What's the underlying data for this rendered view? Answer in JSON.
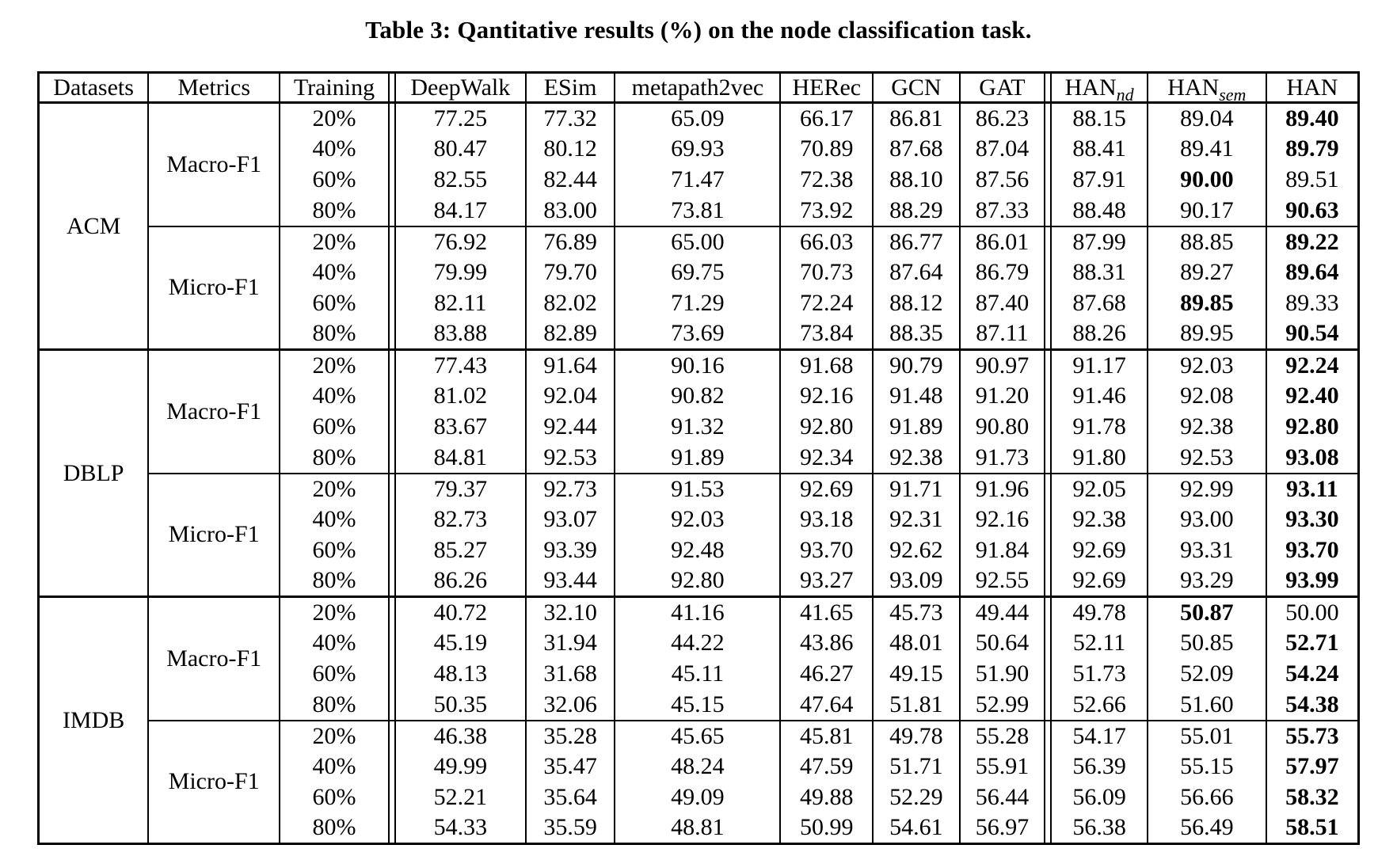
{
  "title": "Table 3: Qantitative results (%) on the node classification task.",
  "table": {
    "columns": [
      {
        "label": "Datasets"
      },
      {
        "label": "Metrics"
      },
      {
        "label": "Training"
      },
      {
        "label": "DeepWalk"
      },
      {
        "label": "ESim"
      },
      {
        "label": "metapath2vec"
      },
      {
        "label": "HERec"
      },
      {
        "label": "GCN"
      },
      {
        "label": "GAT"
      },
      {
        "label": "HAN",
        "sub": "nd"
      },
      {
        "label": "HAN",
        "sub": "sem"
      },
      {
        "label": "HAN"
      }
    ],
    "groups": [
      {
        "dataset": "ACM",
        "sections": [
          {
            "metric": "Macro-F1",
            "rows": [
              {
                "training": "20%",
                "values": [
                  "77.25",
                  "77.32",
                  "65.09",
                  "66.17",
                  "86.81",
                  "86.23",
                  "88.15",
                  "89.04",
                  "89.40"
                ],
                "bold": [
                  8
                ]
              },
              {
                "training": "40%",
                "values": [
                  "80.47",
                  "80.12",
                  "69.93",
                  "70.89",
                  "87.68",
                  "87.04",
                  "88.41",
                  "89.41",
                  "89.79"
                ],
                "bold": [
                  8
                ]
              },
              {
                "training": "60%",
                "values": [
                  "82.55",
                  "82.44",
                  "71.47",
                  "72.38",
                  "88.10",
                  "87.56",
                  "87.91",
                  "90.00",
                  "89.51"
                ],
                "bold": [
                  7
                ]
              },
              {
                "training": "80%",
                "values": [
                  "84.17",
                  "83.00",
                  "73.81",
                  "73.92",
                  "88.29",
                  "87.33",
                  "88.48",
                  "90.17",
                  "90.63"
                ],
                "bold": [
                  8
                ]
              }
            ]
          },
          {
            "metric": "Micro-F1",
            "rows": [
              {
                "training": "20%",
                "values": [
                  "76.92",
                  "76.89",
                  "65.00",
                  "66.03",
                  "86.77",
                  "86.01",
                  "87.99",
                  "88.85",
                  "89.22"
                ],
                "bold": [
                  8
                ]
              },
              {
                "training": "40%",
                "values": [
                  "79.99",
                  "79.70",
                  "69.75",
                  "70.73",
                  "87.64",
                  "86.79",
                  "88.31",
                  "89.27",
                  "89.64"
                ],
                "bold": [
                  8
                ]
              },
              {
                "training": "60%",
                "values": [
                  "82.11",
                  "82.02",
                  "71.29",
                  "72.24",
                  "88.12",
                  "87.40",
                  "87.68",
                  "89.85",
                  "89.33"
                ],
                "bold": [
                  7
                ]
              },
              {
                "training": "80%",
                "values": [
                  "83.88",
                  "82.89",
                  "73.69",
                  "73.84",
                  "88.35",
                  "87.11",
                  "88.26",
                  "89.95",
                  "90.54"
                ],
                "bold": [
                  8
                ]
              }
            ]
          }
        ]
      },
      {
        "dataset": "DBLP",
        "sections": [
          {
            "metric": "Macro-F1",
            "rows": [
              {
                "training": "20%",
                "values": [
                  "77.43",
                  "91.64",
                  "90.16",
                  "91.68",
                  "90.79",
                  "90.97",
                  "91.17",
                  "92.03",
                  "92.24"
                ],
                "bold": [
                  8
                ]
              },
              {
                "training": "40%",
                "values": [
                  "81.02",
                  "92.04",
                  "90.82",
                  "92.16",
                  "91.48",
                  "91.20",
                  "91.46",
                  "92.08",
                  "92.40"
                ],
                "bold": [
                  8
                ]
              },
              {
                "training": "60%",
                "values": [
                  "83.67",
                  "92.44",
                  "91.32",
                  "92.80",
                  "91.89",
                  "90.80",
                  "91.78",
                  "92.38",
                  "92.80"
                ],
                "bold": [
                  8
                ]
              },
              {
                "training": "80%",
                "values": [
                  "84.81",
                  "92.53",
                  "91.89",
                  "92.34",
                  "92.38",
                  "91.73",
                  "91.80",
                  "92.53",
                  "93.08"
                ],
                "bold": [
                  8
                ]
              }
            ]
          },
          {
            "metric": "Micro-F1",
            "rows": [
              {
                "training": "20%",
                "values": [
                  "79.37",
                  "92.73",
                  "91.53",
                  "92.69",
                  "91.71",
                  "91.96",
                  "92.05",
                  "92.99",
                  "93.11"
                ],
                "bold": [
                  8
                ]
              },
              {
                "training": "40%",
                "values": [
                  "82.73",
                  "93.07",
                  "92.03",
                  "93.18",
                  "92.31",
                  "92.16",
                  "92.38",
                  "93.00",
                  "93.30"
                ],
                "bold": [
                  8
                ]
              },
              {
                "training": "60%",
                "values": [
                  "85.27",
                  "93.39",
                  "92.48",
                  "93.70",
                  "92.62",
                  "91.84",
                  "92.69",
                  "93.31",
                  "93.70"
                ],
                "bold": [
                  8
                ]
              },
              {
                "training": "80%",
                "values": [
                  "86.26",
                  "93.44",
                  "92.80",
                  "93.27",
                  "93.09",
                  "92.55",
                  "92.69",
                  "93.29",
                  "93.99"
                ],
                "bold": [
                  8
                ]
              }
            ]
          }
        ]
      },
      {
        "dataset": "IMDB",
        "sections": [
          {
            "metric": "Macro-F1",
            "rows": [
              {
                "training": "20%",
                "values": [
                  "40.72",
                  "32.10",
                  "41.16",
                  "41.65",
                  "45.73",
                  "49.44",
                  "49.78",
                  "50.87",
                  "50.00"
                ],
                "bold": [
                  7
                ]
              },
              {
                "training": "40%",
                "values": [
                  "45.19",
                  "31.94",
                  "44.22",
                  "43.86",
                  "48.01",
                  "50.64",
                  "52.11",
                  "50.85",
                  "52.71"
                ],
                "bold": [
                  8
                ]
              },
              {
                "training": "60%",
                "values": [
                  "48.13",
                  "31.68",
                  "45.11",
                  "46.27",
                  "49.15",
                  "51.90",
                  "51.73",
                  "52.09",
                  "54.24"
                ],
                "bold": [
                  8
                ]
              },
              {
                "training": "80%",
                "values": [
                  "50.35",
                  "32.06",
                  "45.15",
                  "47.64",
                  "51.81",
                  "52.99",
                  "52.66",
                  "51.60",
                  "54.38"
                ],
                "bold": [
                  8
                ]
              }
            ]
          },
          {
            "metric": "Micro-F1",
            "rows": [
              {
                "training": "20%",
                "values": [
                  "46.38",
                  "35.28",
                  "45.65",
                  "45.81",
                  "49.78",
                  "55.28",
                  "54.17",
                  "55.01",
                  "55.73"
                ],
                "bold": [
                  8
                ]
              },
              {
                "training": "40%",
                "values": [
                  "49.99",
                  "35.47",
                  "48.24",
                  "47.59",
                  "51.71",
                  "55.91",
                  "56.39",
                  "55.15",
                  "57.97"
                ],
                "bold": [
                  8
                ]
              },
              {
                "training": "60%",
                "values": [
                  "52.21",
                  "35.64",
                  "49.09",
                  "49.88",
                  "52.29",
                  "56.44",
                  "56.09",
                  "56.66",
                  "58.32"
                ],
                "bold": [
                  8
                ]
              },
              {
                "training": "80%",
                "values": [
                  "54.33",
                  "35.59",
                  "48.81",
                  "50.99",
                  "54.61",
                  "56.97",
                  "56.38",
                  "56.49",
                  "58.51"
                ],
                "bold": [
                  8
                ]
              }
            ]
          }
        ]
      }
    ]
  }
}
